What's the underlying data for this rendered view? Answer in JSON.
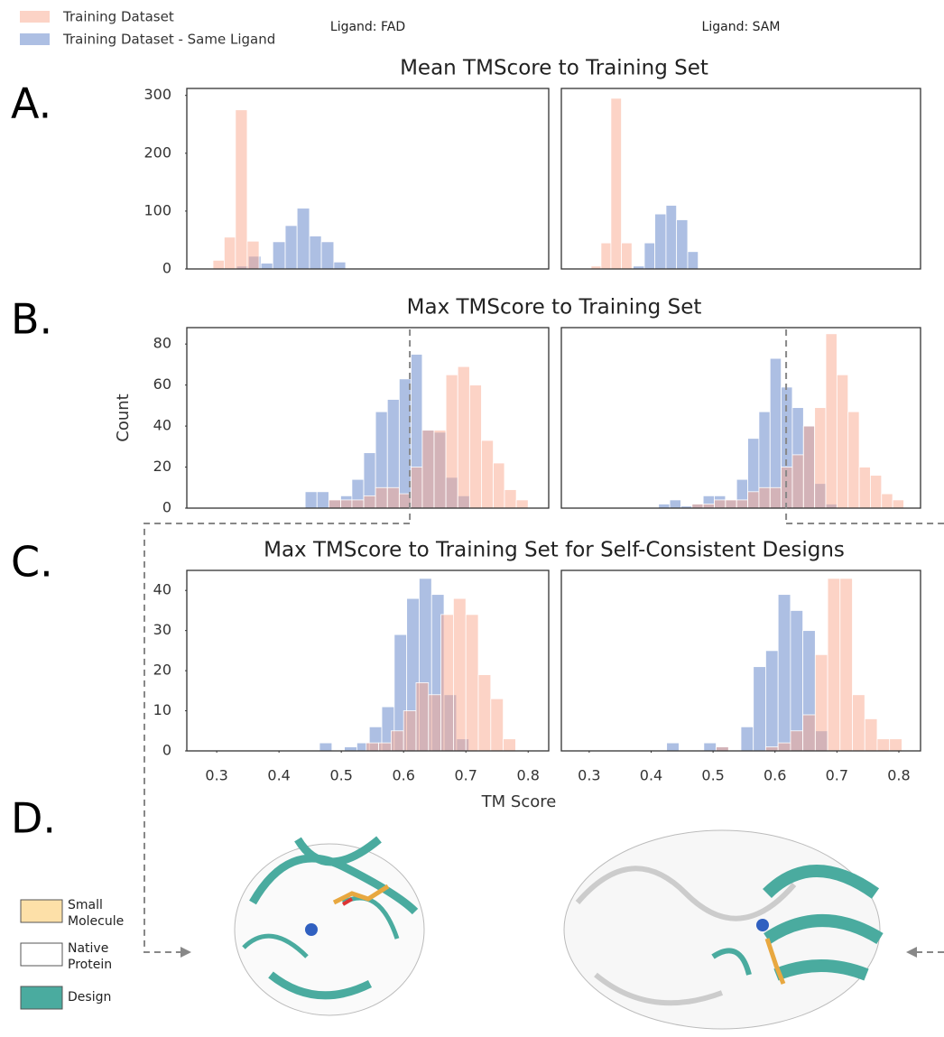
{
  "panel_labels": [
    "A.",
    "B.",
    "C.",
    "D."
  ],
  "chart_data": [
    {
      "type": "histogram",
      "title": "Mean TMScore to Training Set",
      "subtitle": "Ligand: FAD",
      "xlim": [
        0.252,
        0.833
      ],
      "ylim": [
        0,
        312
      ],
      "yticks": [
        0,
        100,
        200,
        300
      ],
      "series": [
        {
          "name": "Training Dataset - Same Ligand",
          "color": "#5b7fc7",
          "bins": [
            0.332,
            0.351,
            0.371,
            0.39,
            0.41,
            0.429,
            0.449,
            0.468,
            0.488,
            0.507
          ],
          "values": [
            5,
            22,
            10,
            47,
            75,
            105,
            57,
            47,
            12
          ]
        },
        {
          "name": "Training Dataset",
          "color": "#f9a88e",
          "bins": [
            0.294,
            0.312,
            0.33,
            0.349,
            0.368
          ],
          "values": [
            15,
            55,
            275,
            48
          ]
        }
      ]
    },
    {
      "type": "histogram",
      "subtitle": "Ligand: SAM",
      "xlim": [
        0.255,
        0.835
      ],
      "ylim": [
        0,
        312
      ],
      "series": [
        {
          "color": "#5b7fc7",
          "bins": [
            0.371,
            0.389,
            0.406,
            0.424,
            0.441,
            0.459,
            0.476
          ],
          "values": [
            5,
            45,
            95,
            110,
            85,
            30
          ]
        },
        {
          "color": "#f9a88e",
          "bins": [
            0.303,
            0.319,
            0.335,
            0.352,
            0.369
          ],
          "values": [
            5,
            45,
            295,
            45
          ]
        }
      ]
    },
    {
      "type": "histogram",
      "title": "Max TMScore to Training Set",
      "ylabel": "Count",
      "threshold": 0.61,
      "xlim": [
        0.252,
        0.833
      ],
      "ylim": [
        0,
        88
      ],
      "yticks": [
        0,
        20,
        40,
        60,
        80
      ],
      "series": [
        {
          "color": "#5b7fc7",
          "bins": [
            0.442,
            0.461,
            0.48,
            0.499,
            0.517,
            0.536,
            0.555,
            0.574,
            0.593,
            0.612,
            0.63,
            0.649,
            0.668,
            0.687,
            0.706
          ],
          "values": [
            8,
            8,
            4,
            6,
            14,
            27,
            47,
            53,
            63,
            75,
            38,
            37,
            15,
            6
          ]
        },
        {
          "color": "#f9a88e",
          "bins": [
            0.48,
            0.499,
            0.517,
            0.536,
            0.555,
            0.574,
            0.593,
            0.612,
            0.63,
            0.649,
            0.668,
            0.687,
            0.706,
            0.725,
            0.744,
            0.762,
            0.781,
            0.8
          ],
          "values": [
            4,
            4,
            4,
            6,
            10,
            10,
            7,
            20,
            38,
            38,
            65,
            69,
            60,
            33,
            22,
            9,
            4
          ]
        }
      ]
    },
    {
      "type": "histogram",
      "threshold": 0.618,
      "xlim": [
        0.255,
        0.835
      ],
      "ylim": [
        0,
        88
      ],
      "series": [
        {
          "color": "#5b7fc7",
          "bins": [
            0.412,
            0.43,
            0.448,
            0.466,
            0.484,
            0.502,
            0.52,
            0.538,
            0.556,
            0.574,
            0.592,
            0.61,
            0.628,
            0.646,
            0.664,
            0.682,
            0.7
          ],
          "values": [
            2,
            4,
            1,
            2,
            6,
            6,
            4,
            14,
            34,
            47,
            73,
            59,
            49,
            40,
            12,
            2
          ]
        },
        {
          "color": "#f9a88e",
          "bins": [
            0.466,
            0.484,
            0.502,
            0.52,
            0.538,
            0.556,
            0.574,
            0.592,
            0.61,
            0.628,
            0.646,
            0.664,
            0.682,
            0.7,
            0.718,
            0.736,
            0.754,
            0.772,
            0.79,
            0.808
          ],
          "values": [
            2,
            2,
            4,
            4,
            4,
            8,
            10,
            10,
            20,
            26,
            40,
            49,
            85,
            65,
            47,
            20,
            16,
            7,
            4
          ]
        }
      ]
    },
    {
      "type": "histogram",
      "title": "Max TMScore to Training Set for Self-Consistent Designs",
      "xlabel": "TM Score",
      "xlim": [
        0.252,
        0.833
      ],
      "ylim": [
        0,
        45
      ],
      "yticks": [
        0,
        10,
        20,
        30,
        40
      ],
      "xticks": [
        0.3,
        0.4,
        0.5,
        0.6,
        0.7,
        0.8
      ],
      "series": [
        {
          "color": "#5b7fc7",
          "bins": [
            0.465,
            0.485,
            0.505,
            0.525,
            0.545,
            0.565,
            0.585,
            0.605,
            0.625,
            0.645,
            0.665,
            0.685,
            0.705
          ],
          "values": [
            2,
            0,
            1,
            2,
            6,
            11,
            29,
            38,
            43,
            39,
            14,
            3
          ]
        },
        {
          "color": "#f9a88e",
          "bins": [
            0.54,
            0.56,
            0.58,
            0.6,
            0.62,
            0.64,
            0.66,
            0.68,
            0.7,
            0.72,
            0.74,
            0.76,
            0.78
          ],
          "values": [
            2,
            2,
            5,
            10,
            17,
            14,
            34,
            38,
            34,
            19,
            13,
            3
          ]
        }
      ]
    },
    {
      "type": "histogram",
      "xlim": [
        0.255,
        0.835
      ],
      "ylim": [
        0,
        45
      ],
      "xticks": [
        0.3,
        0.4,
        0.5,
        0.6,
        0.7,
        0.8
      ],
      "series": [
        {
          "color": "#5b7fc7",
          "bins": [
            0.425,
            0.445,
            0.465,
            0.485,
            0.505,
            0.525,
            0.545,
            0.565,
            0.585,
            0.605,
            0.625,
            0.645,
            0.665,
            0.685
          ],
          "values": [
            2,
            0,
            0,
            2,
            1,
            0,
            6,
            21,
            25,
            39,
            35,
            30,
            5
          ]
        },
        {
          "color": "#f9a88e",
          "bins": [
            0.505,
            0.525,
            0.545,
            0.565,
            0.585,
            0.605,
            0.625,
            0.645,
            0.665,
            0.685,
            0.705,
            0.725,
            0.745,
            0.765,
            0.785,
            0.805
          ],
          "values": [
            1,
            0,
            0,
            0,
            1,
            2,
            5,
            9,
            24,
            43,
            43,
            14,
            8,
            3,
            3
          ]
        }
      ]
    }
  ],
  "structure_legend": [
    {
      "name": "Small Molecule",
      "color": "#fde0a8"
    },
    {
      "name": "Native Protein",
      "color": "#ffffff"
    },
    {
      "name": "Design",
      "color": "#4aab9f"
    }
  ]
}
